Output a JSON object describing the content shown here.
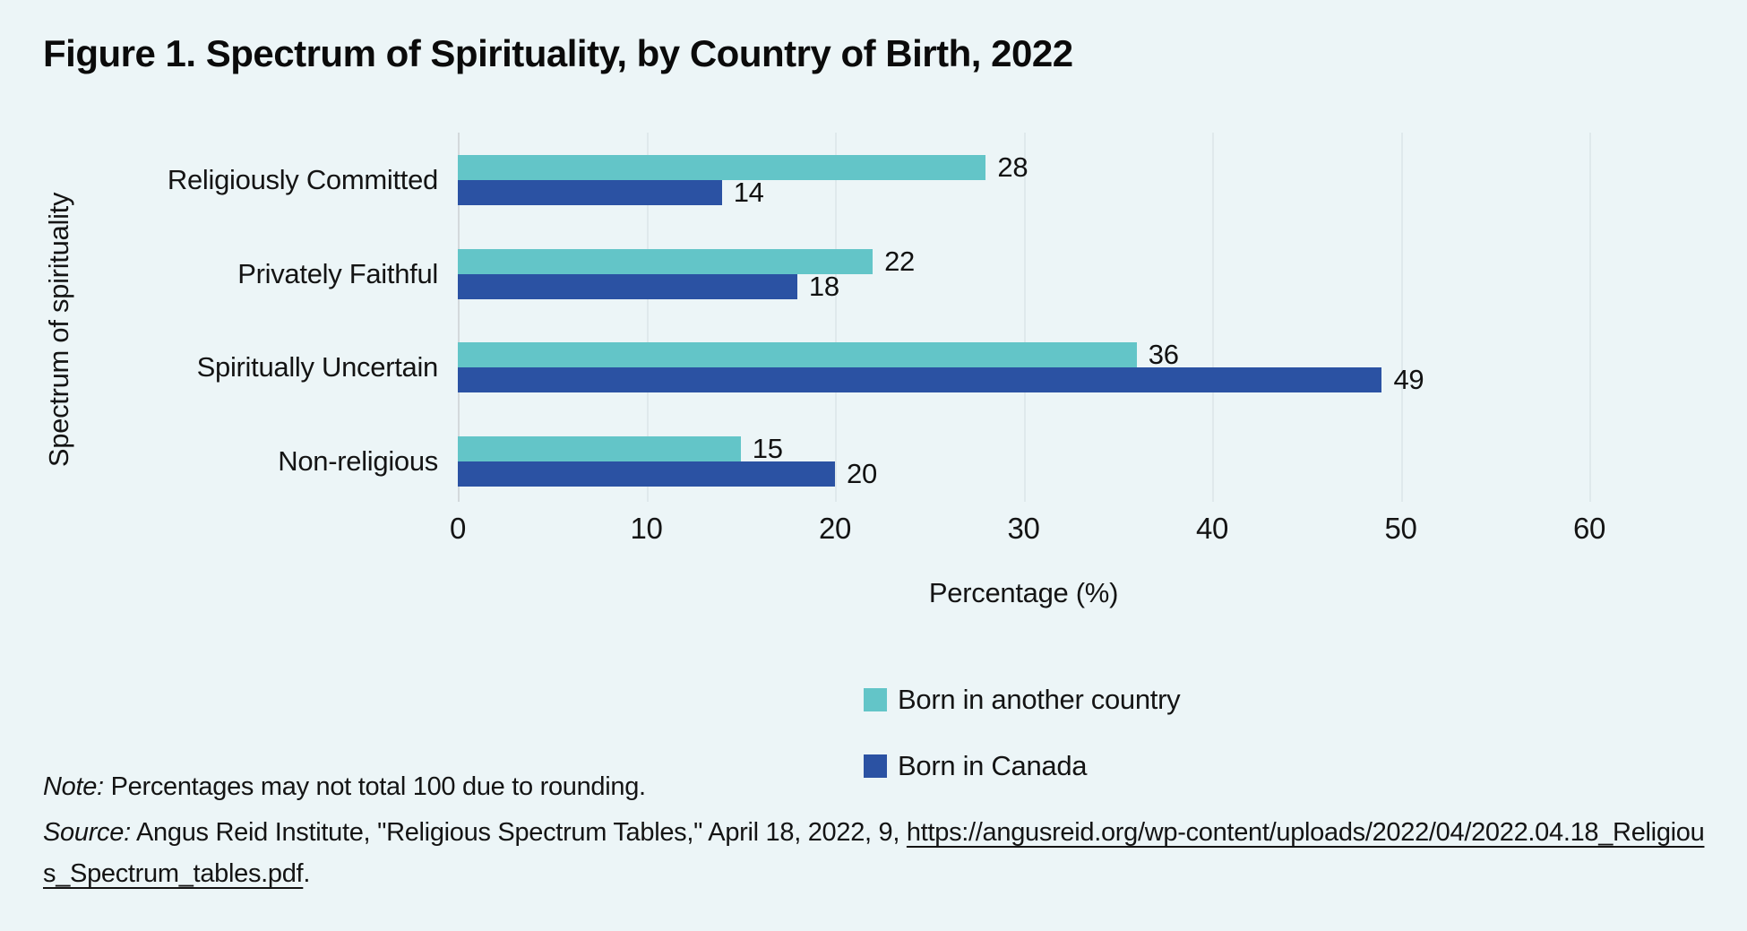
{
  "title": "Figure 1. Spectrum of Spirituality, by Country of Birth, 2022",
  "chart_data": {
    "type": "bar",
    "orientation": "horizontal",
    "title": "Figure 1. Spectrum of Spirituality, by Country of Birth, 2022",
    "categories": [
      "Religiously Committed",
      "Privately Faithful",
      "Spiritually Uncertain",
      "Non-religious"
    ],
    "series": [
      {
        "name": "Born in another country",
        "color": "#63C5C8",
        "values": [
          28,
          22,
          36,
          15
        ]
      },
      {
        "name": "Born in Canada",
        "color": "#2B52A3",
        "values": [
          14,
          18,
          49,
          20
        ]
      }
    ],
    "xlabel": "Percentage (%)",
    "ylabel": "Spectrum of spirituality",
    "xlim": [
      0,
      66
    ],
    "xticks": [
      0,
      10,
      20,
      30,
      40,
      50,
      60
    ],
    "grid": true,
    "legend_position": "bottom",
    "bar_value_labels": true
  },
  "notes": {
    "note_label": "Note:",
    "note_text": "Percentages may not total 100 due to rounding.",
    "source_label": "Source:",
    "source_text": "Angus Reid Institute, \"Religious Spectrum Tables,\" April 18, 2022, 9,",
    "source_link": "https://angusreid.org/wp-content/uploads/2022/04/2022.04.18_Religious_Spectrum_tables.pdf",
    "source_suffix": "."
  },
  "colors": {
    "background": "#ECF5F7",
    "series_teal": "#63C5C8",
    "series_blue": "#2B52A3",
    "gridline": "#DFE9EC",
    "axis_line": "#D3D9DC",
    "text": "#141414"
  }
}
